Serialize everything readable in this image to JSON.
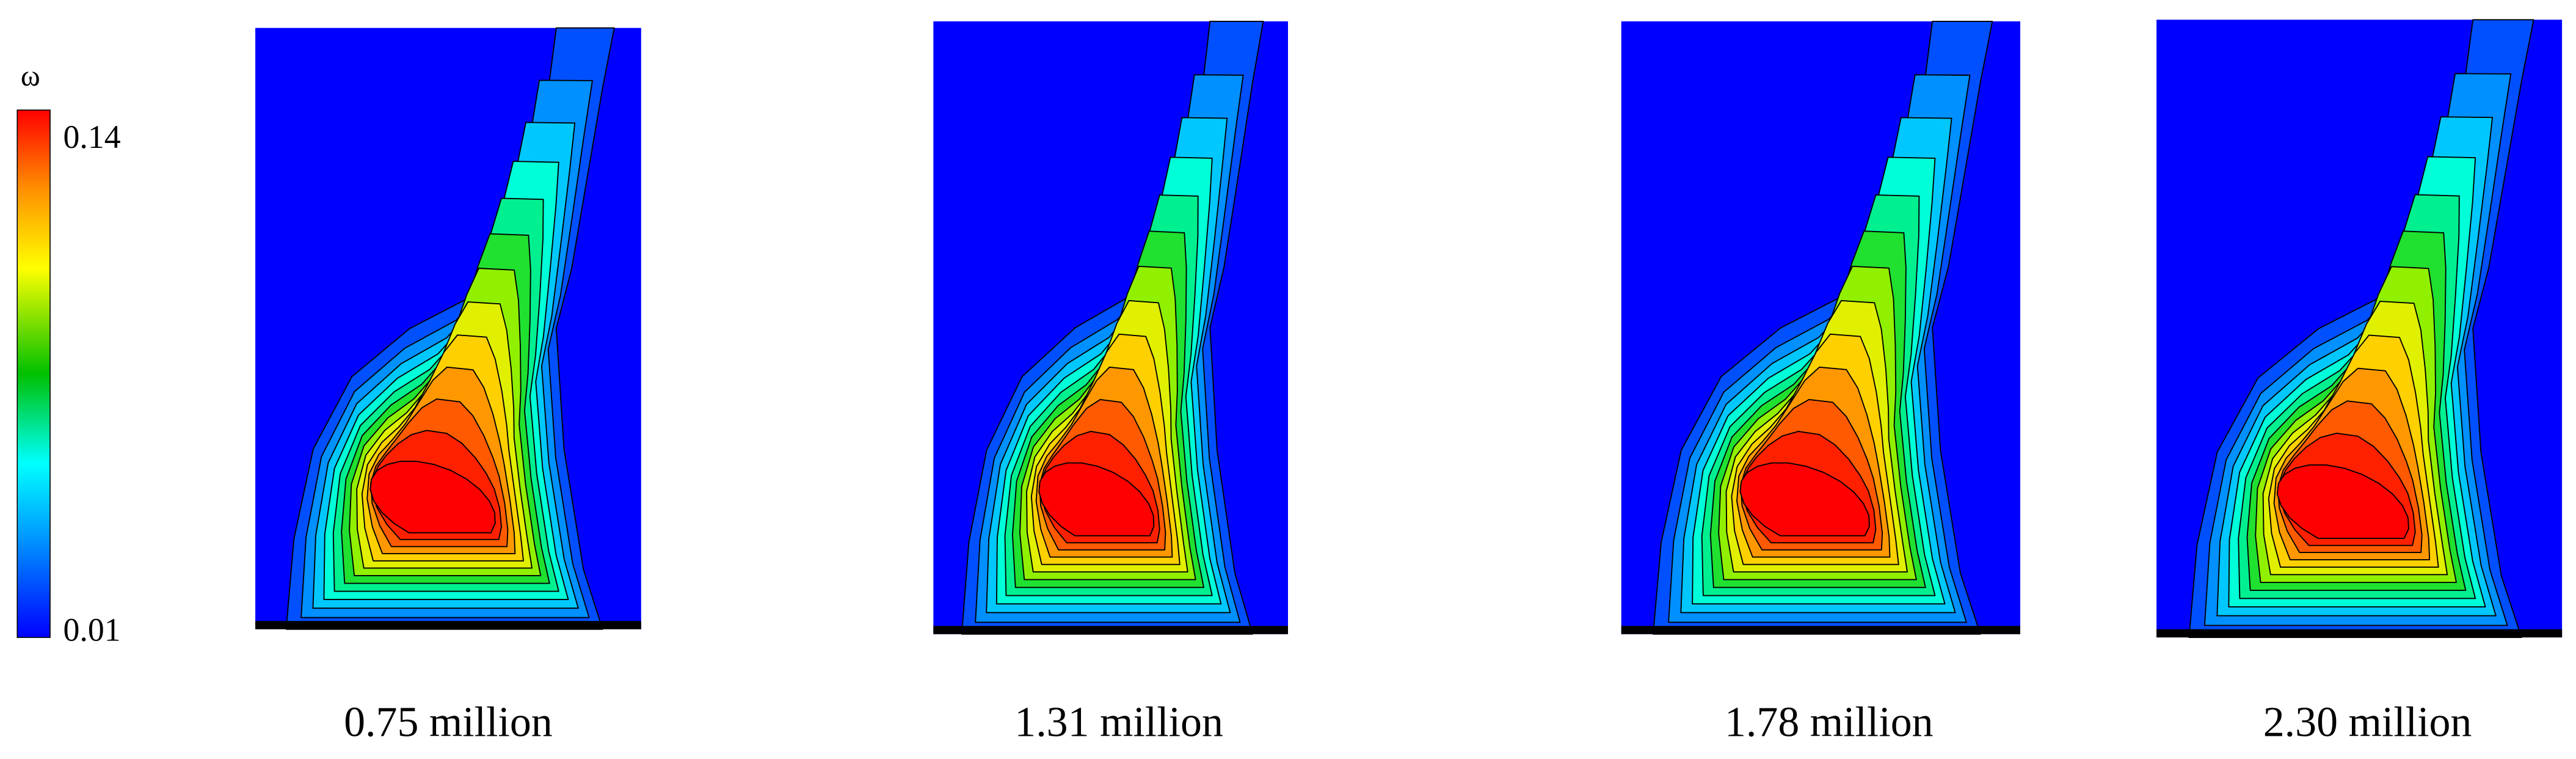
{
  "colorbar": {
    "label": "ω",
    "max_label": "0.14",
    "min_label": "0.01"
  },
  "panels": [
    {
      "label": "0.75 million"
    },
    {
      "label": "1.31 million"
    },
    {
      "label": "1.78 million"
    },
    {
      "label": "2.30 million"
    }
  ]
}
